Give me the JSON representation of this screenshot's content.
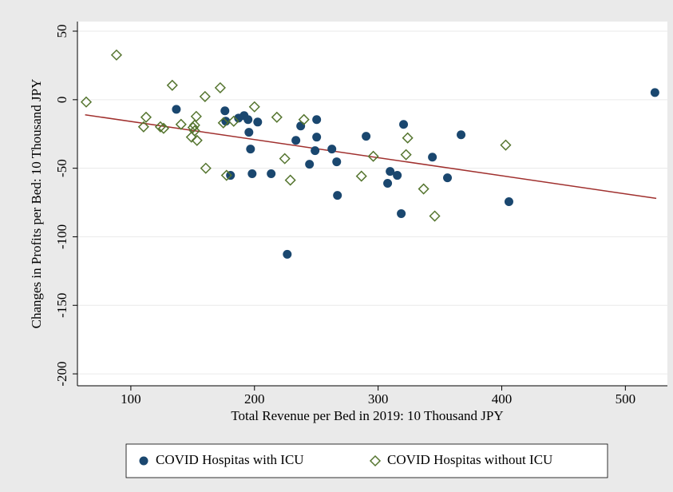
{
  "chart_data": {
    "type": "scatter",
    "xlabel": "Total Revenue per Bed in 2019: 10 Thousand JPY",
    "ylabel": "Changes in Profits per Bed: 10 Thousand JPY",
    "xlim": [
      56.8,
      534
    ],
    "ylim": [
      -208.7,
      57
    ],
    "xticks": [
      100,
      200,
      300,
      400,
      500
    ],
    "yticks": [
      -200,
      -150,
      -100,
      -50,
      0,
      50
    ],
    "grid": true,
    "series": [
      {
        "name": "COVID Hospitas with ICU",
        "color": "#1a476f",
        "marker": "circle",
        "x": [
          136.8,
          176.1,
          176.8,
          180.6,
          187.1,
          191.6,
          194.8,
          195.5,
          196.8,
          198.1,
          202.6,
          213.5,
          226.5,
          233.5,
          237.4,
          244.5,
          249.0,
          250.3,
          250.3,
          262.6,
          266.5,
          267.1,
          290.3,
          307.7,
          309.7,
          315.5,
          318.7,
          320.6,
          343.9,
          356.1,
          367.1,
          405.8,
          523.9
        ],
        "values": [
          -7.0,
          -8.1,
          -15.7,
          -55.2,
          -13.4,
          -11.6,
          -14.5,
          -23.8,
          -36.0,
          -54.0,
          -16.3,
          -54.0,
          -112.8,
          -29.7,
          -19.2,
          -47.1,
          -37.2,
          -27.3,
          -14.5,
          -36.0,
          -45.3,
          -69.8,
          -26.7,
          -61.0,
          -52.3,
          -55.2,
          -83.1,
          -18.0,
          -41.9,
          -57.0,
          -25.6,
          -74.4,
          5.2
        ]
      },
      {
        "name": "COVID Hospitas without ICU",
        "color": "#55752f",
        "marker": "diamond",
        "x": [
          63.9,
          88.4,
          110.3,
          112.3,
          123.9,
          126.5,
          133.5,
          140.6,
          149.0,
          150.3,
          151.6,
          151.6,
          152.9,
          153.5,
          160.0,
          160.6,
          172.3,
          174.8,
          177.4,
          183.2,
          200.0,
          218.1,
          224.5,
          229.0,
          240.0,
          286.5,
          296.1,
          322.6,
          323.9,
          336.8,
          345.8,
          403.2
        ],
        "values": [
          -1.7,
          32.6,
          -19.8,
          -12.8,
          -19.8,
          -20.9,
          10.5,
          -18.0,
          -27.3,
          -20.3,
          -22.7,
          -18.6,
          -12.2,
          -29.7,
          2.3,
          -50.0,
          8.7,
          -16.9,
          -55.2,
          -15.7,
          -5.2,
          -12.8,
          -43.0,
          -58.7,
          -14.5,
          -55.8,
          -41.3,
          -40.1,
          -27.9,
          -65.1,
          -84.9,
          -33.1
        ]
      }
    ],
    "fit_line": {
      "color": "#a0302e",
      "x": [
        63,
        525
      ],
      "values": [
        -11,
        -72
      ]
    }
  }
}
